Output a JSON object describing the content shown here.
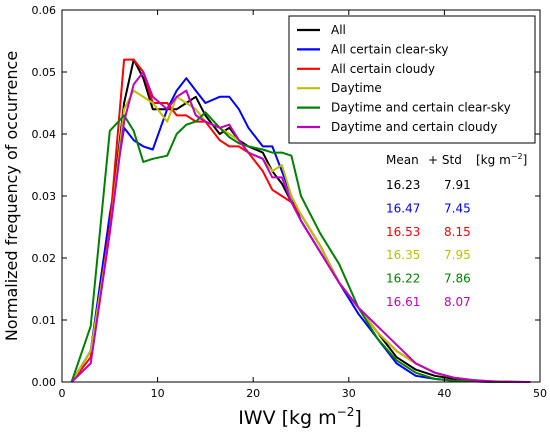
{
  "chart_data": {
    "type": "line",
    "xlabel_base": "IWV [kg m",
    "xlabel_exp": "−2",
    "xlabel_close": "]",
    "ylabel": "Normalized frequency of occurrence",
    "xlim": [
      0,
      50
    ],
    "ylim": [
      0,
      0.06
    ],
    "xticks": [
      0,
      10,
      20,
      30,
      40,
      50
    ],
    "yticks": [
      0.0,
      0.01,
      0.02,
      0.03,
      0.04,
      0.05,
      0.06
    ],
    "ytick_labels": [
      "0.00",
      "0.01",
      "0.02",
      "0.03",
      "0.04",
      "0.05",
      "0.06"
    ],
    "grid": false,
    "legend_position": "top-right",
    "x": [
      1,
      3,
      5,
      6.5,
      7.5,
      8.5,
      9.5,
      11,
      12,
      13,
      14,
      15,
      16.5,
      17.5,
      18.5,
      19.5,
      21,
      22,
      23,
      24,
      25,
      27,
      29,
      31,
      33,
      35,
      37,
      39,
      41,
      43,
      45,
      47,
      49
    ],
    "series": [
      {
        "name": "All",
        "color": "#000000",
        "values": [
          0.0,
          0.005,
          0.025,
          0.045,
          0.052,
          0.049,
          0.044,
          0.044,
          0.044,
          0.045,
          0.046,
          0.043,
          0.04,
          0.041,
          0.039,
          0.038,
          0.037,
          0.034,
          0.032,
          0.029,
          0.027,
          0.022,
          0.016,
          0.012,
          0.008,
          0.004,
          0.002,
          0.001,
          0.0005,
          0.0002,
          0.0001,
          5e-05,
          0.0
        ]
      },
      {
        "name": "All certain clear-sky",
        "color": "#0000ff",
        "values": [
          0.0,
          0.005,
          0.027,
          0.041,
          0.039,
          0.038,
          0.0375,
          0.044,
          0.047,
          0.049,
          0.047,
          0.045,
          0.046,
          0.046,
          0.044,
          0.041,
          0.038,
          0.038,
          0.034,
          0.03,
          0.026,
          0.021,
          0.016,
          0.011,
          0.007,
          0.003,
          0.001,
          0.0005,
          0.0002,
          0.0001,
          0.0,
          0.0,
          0.0
        ]
      },
      {
        "name": "All certain cloudy",
        "color": "#ff0000",
        "values": [
          0.0,
          0.004,
          0.025,
          0.052,
          0.052,
          0.05,
          0.045,
          0.045,
          0.043,
          0.043,
          0.042,
          0.042,
          0.039,
          0.038,
          0.038,
          0.037,
          0.034,
          0.031,
          0.03,
          0.029,
          0.027,
          0.022,
          0.016,
          0.012,
          0.008,
          0.005,
          0.003,
          0.0015,
          0.0007,
          0.0003,
          0.0001,
          0.0,
          0.0
        ]
      },
      {
        "name": "Daytime",
        "color": "#bfbf00",
        "values": [
          0.0,
          0.005,
          0.024,
          0.044,
          0.047,
          0.046,
          0.045,
          0.042,
          0.046,
          0.045,
          0.044,
          0.042,
          0.041,
          0.04,
          0.039,
          0.037,
          0.036,
          0.034,
          0.035,
          0.03,
          0.027,
          0.022,
          0.016,
          0.012,
          0.008,
          0.005,
          0.003,
          0.0015,
          0.0007,
          0.0003,
          0.0001,
          0.0,
          0.0
        ]
      },
      {
        "name": "Daytime and certain clear-sky",
        "color": "#008000",
        "values": [
          0.0,
          0.009,
          0.0405,
          0.043,
          0.0405,
          0.0355,
          0.036,
          0.0365,
          0.04,
          0.0415,
          0.042,
          0.0435,
          0.041,
          0.0395,
          0.0385,
          0.038,
          0.0375,
          0.037,
          0.037,
          0.0365,
          0.03,
          0.024,
          0.019,
          0.012,
          0.007,
          0.0035,
          0.0015,
          0.0005,
          0.0002,
          0.0001,
          0.0,
          0.0,
          0.0
        ]
      },
      {
        "name": "Daytime and certain cloudy",
        "color": "#bf00bf",
        "values": [
          0.0,
          0.003,
          0.024,
          0.042,
          0.048,
          0.05,
          0.046,
          0.044,
          0.046,
          0.047,
          0.043,
          0.042,
          0.041,
          0.0415,
          0.039,
          0.037,
          0.036,
          0.033,
          0.033,
          0.029,
          0.026,
          0.021,
          0.016,
          0.012,
          0.009,
          0.006,
          0.003,
          0.0015,
          0.0007,
          0.0003,
          0.0001,
          0.0,
          0.0
        ]
      }
    ],
    "stats_table": {
      "header": [
        "Mean",
        "+ Std",
        "[kg m",
        "−2",
        "]"
      ],
      "rows": [
        {
          "mean": "16.23",
          "std": "7.91",
          "color": "#000000"
        },
        {
          "mean": "16.47",
          "std": "7.45",
          "color": "#0000ff"
        },
        {
          "mean": "16.53",
          "std": "8.15",
          "color": "#ff0000"
        },
        {
          "mean": "16.35",
          "std": "7.95",
          "color": "#bfbf00"
        },
        {
          "mean": "16.22",
          "std": "7.86",
          "color": "#008000"
        },
        {
          "mean": "16.61",
          "std": "8.07",
          "color": "#bf00bf"
        }
      ]
    }
  }
}
